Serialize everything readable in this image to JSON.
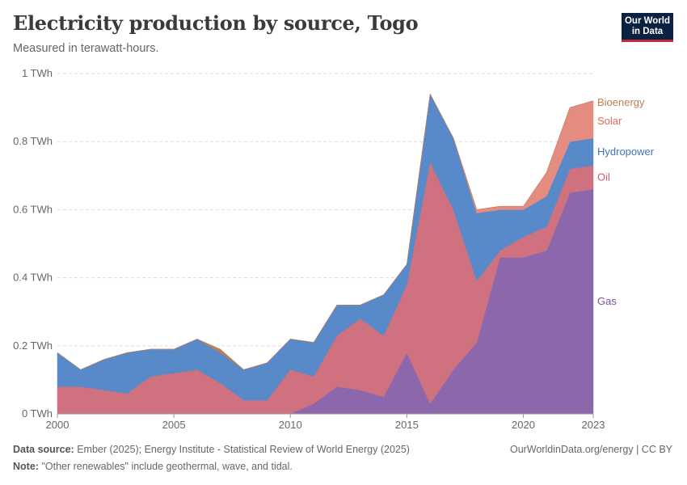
{
  "header": {
    "title": "Electricity production by source, Togo",
    "subtitle": "Measured in terawatt-hours."
  },
  "logo": {
    "line1": "Our World",
    "line2": "in Data"
  },
  "footer": {
    "source_label": "Data source:",
    "source_text": "Ember (2025); Energy Institute - Statistical Review of World Energy (2025)",
    "note_label": "Note:",
    "note_text": "\"Other renewables\" include geothermal, wave, and tidal.",
    "credit": "OurWorldinData.org/energy | CC BY"
  },
  "chart_data": {
    "type": "area",
    "stacked": true,
    "title": "Electricity production by source, Togo",
    "ylabel": "TWh",
    "xlim": [
      2000,
      2023
    ],
    "ylim": [
      0,
      1
    ],
    "x": [
      2000,
      2001,
      2002,
      2003,
      2004,
      2005,
      2006,
      2007,
      2008,
      2009,
      2010,
      2011,
      2012,
      2013,
      2014,
      2015,
      2016,
      2017,
      2018,
      2019,
      2020,
      2021,
      2022,
      2023
    ],
    "x_ticks": [
      {
        "value": 2000,
        "label": "2000"
      },
      {
        "value": 2005,
        "label": "2005"
      },
      {
        "value": 2010,
        "label": "2010"
      },
      {
        "value": 2015,
        "label": "2015"
      },
      {
        "value": 2020,
        "label": "2020"
      },
      {
        "value": 2023,
        "label": "2023"
      }
    ],
    "y_ticks": [
      {
        "value": 0,
        "label": "0 TWh"
      },
      {
        "value": 0.2,
        "label": "0.2 TWh"
      },
      {
        "value": 0.4,
        "label": "0.4 TWh"
      },
      {
        "value": 0.6,
        "label": "0.6 TWh"
      },
      {
        "value": 0.8,
        "label": "0.8 TWh"
      },
      {
        "value": 1,
        "label": "1 TWh"
      }
    ],
    "series": [
      {
        "name": "Gas",
        "color": "#8c67ab",
        "values": [
          0,
          0,
          0,
          0,
          0,
          0,
          0,
          0,
          0,
          0,
          0,
          0.03,
          0.08,
          0.07,
          0.05,
          0.18,
          0.03,
          0.13,
          0.21,
          0.46,
          0.46,
          0.48,
          0.65,
          0.66
        ]
      },
      {
        "name": "Oil",
        "color": "#cf717f",
        "values": [
          0.08,
          0.08,
          0.07,
          0.06,
          0.11,
          0.12,
          0.13,
          0.09,
          0.04,
          0.04,
          0.13,
          0.08,
          0.15,
          0.21,
          0.18,
          0.2,
          0.71,
          0.47,
          0.18,
          0.02,
          0.06,
          0.07,
          0.07,
          0.07
        ]
      },
      {
        "name": "Hydropower",
        "color": "#5889c8",
        "values": [
          0.1,
          0.05,
          0.09,
          0.12,
          0.08,
          0.07,
          0.09,
          0.09,
          0.09,
          0.11,
          0.09,
          0.1,
          0.09,
          0.04,
          0.12,
          0.06,
          0.2,
          0.21,
          0.2,
          0.12,
          0.08,
          0.09,
          0.08,
          0.08
        ]
      },
      {
        "name": "Solar",
        "color": "#e58c80",
        "values": [
          0,
          0,
          0,
          0,
          0,
          0,
          0,
          0,
          0,
          0,
          0,
          0,
          0,
          0,
          0,
          0,
          0,
          0,
          0.01,
          0.01,
          0.01,
          0.07,
          0.1,
          0.11
        ]
      },
      {
        "name": "Bioenergy",
        "color": "#b97f55",
        "values": [
          0,
          0,
          0,
          0,
          0,
          0,
          0,
          0.01,
          0,
          0,
          0,
          0,
          0,
          0,
          0,
          0,
          0,
          0,
          0,
          0,
          0,
          0,
          0,
          0
        ]
      }
    ],
    "legend": [
      {
        "name": "Bioenergy",
        "color": "#b97f55",
        "anchor_value": 0.915
      },
      {
        "name": "Solar",
        "color": "#dd6a5c",
        "anchor_value": 0.86
      },
      {
        "name": "Hydropower",
        "color": "#3f72b8",
        "anchor_value": 0.77
      },
      {
        "name": "Oil",
        "color": "#c85a6c",
        "anchor_value": 0.695
      },
      {
        "name": "Gas",
        "color": "#7a4f9c",
        "anchor_value": 0.33
      }
    ],
    "legend_placement": "right",
    "grid": true
  }
}
